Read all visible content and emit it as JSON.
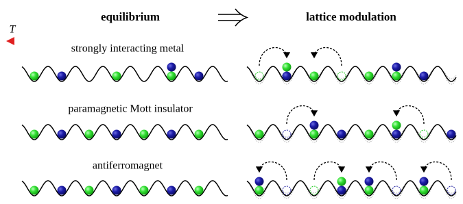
{
  "header": {
    "left": "equilibrium",
    "right": "lattice modulation"
  },
  "axis": {
    "label": "T"
  },
  "rows": [
    {
      "label": "strongly interacting metal"
    },
    {
      "label": "paramagnetic Mott insulator"
    },
    {
      "label": "antiferromagnet"
    }
  ]
}
